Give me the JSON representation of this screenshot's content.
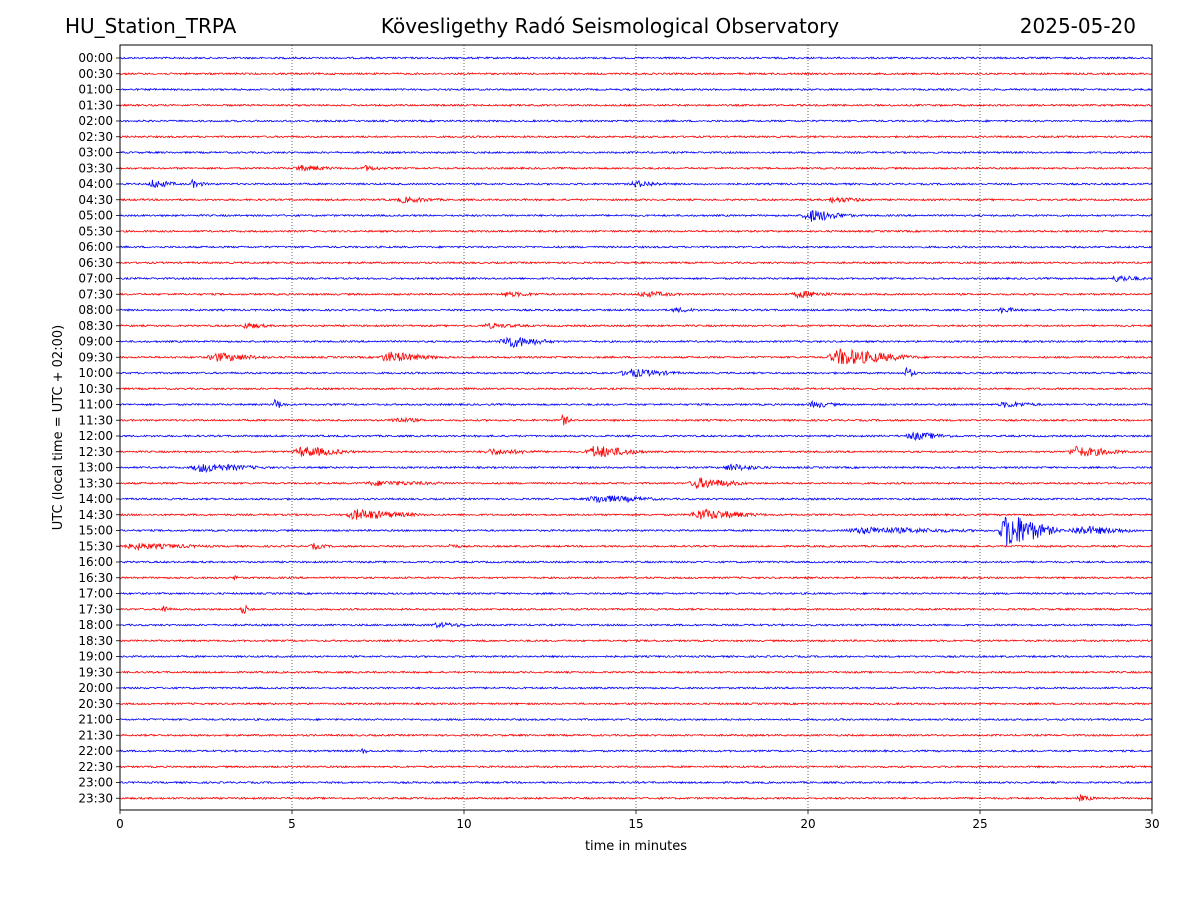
{
  "header": {
    "station": "HU_Station_TRPA",
    "observatory": "Kövesligethy Radó Seismological Observatory",
    "date": "2025-05-20"
  },
  "chart_data": {
    "type": "line",
    "subtype": "helicorder",
    "title": "Kövesligethy Radó Seismological Observatory",
    "xlabel": "time in minutes",
    "ylabel": "UTC (local time = UTC + 02:00)",
    "xlim": [
      0,
      30
    ],
    "x_ticks": [
      0,
      5,
      10,
      15,
      20,
      25,
      30
    ],
    "grid": "vertical dotted at every 5 minutes",
    "colors": {
      "even_rows": "#0000ff",
      "odd_rows": "#ff0000",
      "grid": "#000000"
    },
    "rows": [
      "00:00",
      "00:30",
      "01:00",
      "01:30",
      "02:00",
      "02:30",
      "03:00",
      "03:30",
      "04:00",
      "04:30",
      "05:00",
      "05:30",
      "06:00",
      "06:30",
      "07:00",
      "07:30",
      "08:00",
      "08:30",
      "09:00",
      "09:30",
      "10:00",
      "10:30",
      "11:00",
      "11:30",
      "12:00",
      "12:30",
      "13:00",
      "13:30",
      "14:00",
      "14:30",
      "15:00",
      "15:30",
      "16:00",
      "16:30",
      "17:00",
      "17:30",
      "18:00",
      "18:30",
      "19:00",
      "19:30",
      "20:00",
      "20:30",
      "21:00",
      "21:30",
      "22:00",
      "22:30",
      "23:00",
      "23:30"
    ],
    "events": [
      {
        "row": "03:30",
        "start_min": 5.0,
        "end_min": 6.5,
        "amplitude": 2.5
      },
      {
        "row": "03:30",
        "start_min": 7.0,
        "end_min": 7.8,
        "amplitude": 2.5
      },
      {
        "row": "04:00",
        "start_min": 0.8,
        "end_min": 1.8,
        "amplitude": 4
      },
      {
        "row": "04:00",
        "start_min": 2.0,
        "end_min": 2.6,
        "amplitude": 3.5
      },
      {
        "row": "04:00",
        "start_min": 14.8,
        "end_min": 16.0,
        "amplitude": 3
      },
      {
        "row": "04:30",
        "start_min": 8.0,
        "end_min": 9.5,
        "amplitude": 2.5
      },
      {
        "row": "04:30",
        "start_min": 20.5,
        "end_min": 22.0,
        "amplitude": 2.5
      },
      {
        "row": "05:00",
        "start_min": 19.8,
        "end_min": 21.5,
        "amplitude": 6
      },
      {
        "row": "07:00",
        "start_min": 28.8,
        "end_min": 30.0,
        "amplitude": 3
      },
      {
        "row": "07:30",
        "start_min": 11.0,
        "end_min": 12.5,
        "amplitude": 2
      },
      {
        "row": "07:30",
        "start_min": 15.0,
        "end_min": 16.5,
        "amplitude": 2.5
      },
      {
        "row": "07:30",
        "start_min": 19.5,
        "end_min": 21.0,
        "amplitude": 3
      },
      {
        "row": "08:00",
        "start_min": 16.0,
        "end_min": 17.0,
        "amplitude": 2
      },
      {
        "row": "08:00",
        "start_min": 25.5,
        "end_min": 26.3,
        "amplitude": 2.5
      },
      {
        "row": "08:30",
        "start_min": 3.5,
        "end_min": 4.5,
        "amplitude": 2.5
      },
      {
        "row": "08:30",
        "start_min": 10.5,
        "end_min": 12.0,
        "amplitude": 2
      },
      {
        "row": "09:00",
        "start_min": 11.0,
        "end_min": 12.8,
        "amplitude": 6
      },
      {
        "row": "09:30",
        "start_min": 2.5,
        "end_min": 4.5,
        "amplitude": 4
      },
      {
        "row": "09:30",
        "start_min": 7.5,
        "end_min": 9.5,
        "amplitude": 5
      },
      {
        "row": "09:30",
        "start_min": 20.5,
        "end_min": 23.5,
        "amplitude": 8
      },
      {
        "row": "10:00",
        "start_min": 14.5,
        "end_min": 16.5,
        "amplitude": 4
      },
      {
        "row": "10:00",
        "start_min": 22.8,
        "end_min": 23.2,
        "amplitude": 6
      },
      {
        "row": "11:00",
        "start_min": 4.4,
        "end_min": 4.9,
        "amplitude": 5
      },
      {
        "row": "11:00",
        "start_min": 20.0,
        "end_min": 21.0,
        "amplitude": 3
      },
      {
        "row": "11:00",
        "start_min": 25.5,
        "end_min": 27.0,
        "amplitude": 2.5
      },
      {
        "row": "11:30",
        "start_min": 7.8,
        "end_min": 9.0,
        "amplitude": 2.5
      },
      {
        "row": "11:30",
        "start_min": 12.8,
        "end_min": 13.2,
        "amplitude": 5
      },
      {
        "row": "12:00",
        "start_min": 22.8,
        "end_min": 24.5,
        "amplitude": 3.5
      },
      {
        "row": "12:30",
        "start_min": 5.0,
        "end_min": 7.0,
        "amplitude": 5
      },
      {
        "row": "12:30",
        "start_min": 10.5,
        "end_min": 12.5,
        "amplitude": 2.5
      },
      {
        "row": "12:30",
        "start_min": 13.5,
        "end_min": 15.5,
        "amplitude": 6
      },
      {
        "row": "12:30",
        "start_min": 27.5,
        "end_min": 29.5,
        "amplitude": 5
      },
      {
        "row": "13:00",
        "start_min": 2.0,
        "end_min": 4.5,
        "amplitude": 4
      },
      {
        "row": "13:00",
        "start_min": 17.5,
        "end_min": 19.0,
        "amplitude": 3
      },
      {
        "row": "13:30",
        "start_min": 7.0,
        "end_min": 10.0,
        "amplitude": 2
      },
      {
        "row": "13:30",
        "start_min": 16.5,
        "end_min": 18.5,
        "amplitude": 5
      },
      {
        "row": "14:00",
        "start_min": 13.5,
        "end_min": 16.0,
        "amplitude": 3.5
      },
      {
        "row": "14:30",
        "start_min": 6.5,
        "end_min": 9.0,
        "amplitude": 5
      },
      {
        "row": "14:30",
        "start_min": 16.5,
        "end_min": 19.0,
        "amplitude": 5
      },
      {
        "row": "15:00",
        "start_min": 21.0,
        "end_min": 25.5,
        "amplitude": 3
      },
      {
        "row": "15:00",
        "start_min": 25.5,
        "end_min": 27.5,
        "amplitude": 18
      },
      {
        "row": "15:00",
        "start_min": 27.5,
        "end_min": 30.0,
        "amplitude": 4
      },
      {
        "row": "15:30",
        "start_min": 0.0,
        "end_min": 3.0,
        "amplitude": 2.5
      },
      {
        "row": "15:30",
        "start_min": 5.5,
        "end_min": 6.2,
        "amplitude": 2.5
      },
      {
        "row": "15:30",
        "start_min": 9.5,
        "end_min": 10.0,
        "amplitude": 2
      },
      {
        "row": "16:30",
        "start_min": 3.3,
        "end_min": 3.5,
        "amplitude": 3
      },
      {
        "row": "17:30",
        "start_min": 1.2,
        "end_min": 1.5,
        "amplitude": 5
      },
      {
        "row": "17:30",
        "start_min": 3.5,
        "end_min": 3.9,
        "amplitude": 5
      },
      {
        "row": "18:00",
        "start_min": 9.0,
        "end_min": 10.5,
        "amplitude": 2
      },
      {
        "row": "22:00",
        "start_min": 7.0,
        "end_min": 7.3,
        "amplitude": 2.5
      },
      {
        "row": "23:30",
        "start_min": 27.8,
        "end_min": 28.5,
        "amplitude": 2.5
      }
    ]
  }
}
